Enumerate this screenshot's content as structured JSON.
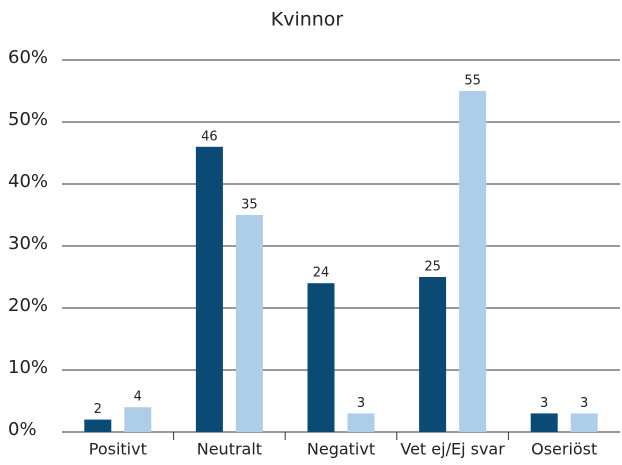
{
  "chart_data": {
    "type": "bar",
    "title": "Kvinnor",
    "categories": [
      "Positivt",
      "Neutralt",
      "Negativt",
      "Vet ej/Ej svar",
      "Oseriöst"
    ],
    "series": [
      {
        "color": "#0b4a75",
        "values": [
          2,
          46,
          24,
          25,
          3
        ]
      },
      {
        "color": "#aecde8",
        "values": [
          4,
          35,
          3,
          55,
          3
        ]
      }
    ],
    "ylim": [
      0,
      60
    ],
    "yticks": [
      {
        "value": 0,
        "label": "0%"
      },
      {
        "value": 10,
        "label": "10%"
      },
      {
        "value": 20,
        "label": "20%"
      },
      {
        "value": 30,
        "label": "30%"
      },
      {
        "value": 40,
        "label": "40%"
      },
      {
        "value": 50,
        "label": "50%"
      },
      {
        "value": 60,
        "label": "60%"
      }
    ],
    "grid": true
  }
}
